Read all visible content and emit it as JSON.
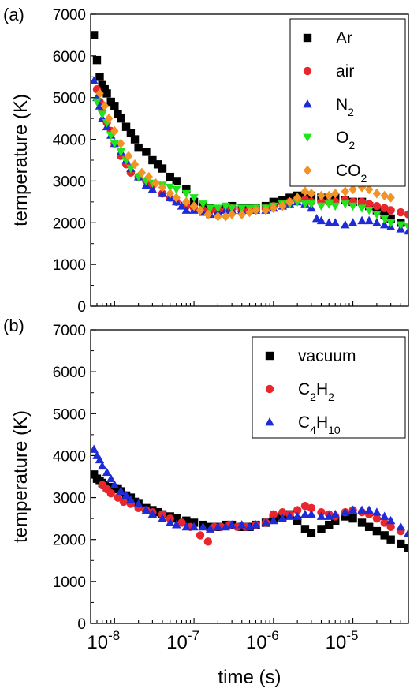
{
  "chart_data": [
    {
      "type": "scatter",
      "panel_label": "(a)",
      "ylabel": "temperature (K)",
      "xlabel": "",
      "x_scale": "log",
      "xlim": [
        5e-09,
        5e-05
      ],
      "ylim": [
        0,
        7000
      ],
      "y_ticks": [
        "0",
        "1000",
        "2000",
        "3000",
        "4000",
        "5000",
        "6000",
        "7000"
      ],
      "legend_position": "top-right",
      "series": [
        {
          "name": "Ar",
          "name_base": "Ar",
          "name_sub": "",
          "marker": "square",
          "color": "#000000",
          "x": [
            5.5e-09,
            6e-09,
            6.5e-09,
            7e-09,
            7.5e-09,
            8e-09,
            9e-09,
            1e-08,
            1.1e-08,
            1.2e-08,
            1.4e-08,
            1.6e-08,
            1.8e-08,
            2e-08,
            2.5e-08,
            3e-08,
            3.5e-08,
            4e-08,
            5e-08,
            6e-08,
            8e-08,
            1e-07,
            1.3e-07,
            1.6e-07,
            2e-07,
            2.5e-07,
            3e-07,
            4e-07,
            5e-07,
            6e-07,
            8e-07,
            1e-06,
            1.3e-06,
            1.6e-06,
            2e-06,
            2.5e-06,
            3e-06,
            4e-06,
            5e-06,
            6e-06,
            8e-06,
            1e-05,
            1.3e-05,
            1.6e-05,
            2e-05,
            2.5e-05,
            3e-05,
            4e-05
          ],
          "y": [
            6500,
            5900,
            5500,
            5300,
            5200,
            5100,
            4900,
            4800,
            4600,
            4500,
            4300,
            4150,
            4000,
            3800,
            3700,
            3500,
            3400,
            3300,
            3100,
            3000,
            2800,
            2500,
            2400,
            2350,
            2300,
            2350,
            2400,
            2350,
            2350,
            2350,
            2400,
            2500,
            2550,
            2600,
            2650,
            2600,
            2650,
            2600,
            2550,
            2600,
            2550,
            2500,
            2500,
            2400,
            2300,
            2200,
            2100,
            2000
          ]
        },
        {
          "name": "air",
          "name_base": "air",
          "name_sub": "",
          "marker": "circle",
          "color": "#e8262c",
          "x": [
            6e-09,
            6.5e-09,
            7e-09,
            8e-09,
            9e-09,
            1e-08,
            1.2e-08,
            1.4e-08,
            1.6e-08,
            2e-08,
            2.5e-08,
            3e-08,
            4e-08,
            5e-08,
            6e-08,
            8e-08,
            1e-07,
            1.3e-07,
            1.6e-07,
            2e-07,
            2.5e-07,
            3e-07,
            4e-07,
            5e-07,
            6e-07,
            8e-07,
            1e-06,
            1.3e-06,
            1.6e-06,
            2e-06,
            2.5e-06,
            3e-06,
            4e-06,
            5e-06,
            6e-06,
            8e-06,
            1e-05,
            1.3e-05,
            1.6e-05,
            2e-05,
            2.5e-05,
            3e-05,
            4e-05,
            5e-05
          ],
          "y": [
            5200,
            4900,
            4700,
            4400,
            4200,
            3900,
            3600,
            3400,
            3200,
            3100,
            3000,
            2900,
            2700,
            2600,
            2500,
            2400,
            2350,
            2300,
            2300,
            2300,
            2300,
            2350,
            2300,
            2300,
            2350,
            2350,
            2400,
            2450,
            2500,
            2550,
            2550,
            2500,
            2500,
            2500,
            2500,
            2550,
            2500,
            2500,
            2450,
            2400,
            2350,
            2300,
            2250,
            2200
          ]
        },
        {
          "name": "N2",
          "name_base": "N",
          "name_sub": "2",
          "marker": "triangle-up",
          "color": "#1f2bd6",
          "x": [
            5.5e-09,
            6e-09,
            6.5e-09,
            7e-09,
            8e-09,
            9e-09,
            1e-08,
            1.2e-08,
            1.4e-08,
            1.6e-08,
            2e-08,
            2.5e-08,
            3e-08,
            4e-08,
            5e-08,
            6e-08,
            7e-08,
            8e-08,
            1e-07,
            1.3e-07,
            1.6e-07,
            2e-07,
            2.5e-07,
            3e-07,
            4e-07,
            5e-07,
            6e-07,
            8e-07,
            1e-06,
            1.3e-06,
            1.6e-06,
            2e-06,
            2.5e-06,
            3e-06,
            3.5e-06,
            4e-06,
            5e-06,
            6e-06,
            8e-06,
            1e-05,
            1.3e-05,
            1.6e-05,
            2e-05,
            2.5e-05,
            3e-05,
            4e-05,
            5e-05
          ],
          "y": [
            5400,
            5000,
            4800,
            4500,
            4300,
            4100,
            3900,
            3700,
            3500,
            3300,
            3100,
            2900,
            2800,
            2700,
            2600,
            2500,
            2400,
            2300,
            2300,
            2250,
            2200,
            2250,
            2300,
            2300,
            2300,
            2300,
            2300,
            2300,
            2350,
            2400,
            2450,
            2500,
            2450,
            2350,
            2100,
            2050,
            2000,
            2000,
            1950,
            2000,
            2050,
            2050,
            2000,
            1950,
            1900,
            1850,
            1800
          ]
        },
        {
          "name": "O2",
          "name_base": "O",
          "name_sub": "2",
          "marker": "triangle-down",
          "color": "#1ee61a",
          "x": [
            6e-09,
            7e-09,
            8e-09,
            9e-09,
            1e-08,
            1.2e-08,
            1.4e-08,
            1.6e-08,
            2e-08,
            2.5e-08,
            3e-08,
            4e-08,
            5e-08,
            6e-08,
            8e-08,
            1e-07,
            1.3e-07,
            1.6e-07,
            2e-07,
            2.5e-07,
            3e-07,
            4e-07,
            5e-07,
            6e-07,
            8e-07,
            1e-06,
            1.3e-06,
            1.6e-06,
            2e-06,
            2.5e-06,
            3e-06,
            4e-06,
            5e-06,
            6e-06,
            8e-06,
            1e-05,
            1.3e-05,
            1.6e-05,
            2e-05,
            2.5e-05,
            3e-05,
            4e-05,
            5e-05
          ],
          "y": [
            4900,
            4600,
            4400,
            4100,
            3900,
            3700,
            3500,
            3300,
            3100,
            3000,
            2950,
            2900,
            2850,
            2800,
            2700,
            2600,
            2450,
            2350,
            2350,
            2400,
            2350,
            2350,
            2350,
            2350,
            2350,
            2400,
            2450,
            2450,
            2500,
            2450,
            2450,
            2400,
            2450,
            2400,
            2450,
            2400,
            2350,
            2300,
            2200,
            2100,
            2000,
            1950,
            1900
          ]
        },
        {
          "name": "CO2",
          "name_base": "CO",
          "name_sub": "2",
          "marker": "diamond",
          "color": "#f29325",
          "x": [
            6.5e-09,
            7.5e-09,
            8.5e-09,
            1e-08,
            1.2e-08,
            1.5e-08,
            1.8e-08,
            2.2e-08,
            2.7e-08,
            3.3e-08,
            4e-08,
            5e-08,
            6e-08,
            8e-08,
            1e-07,
            1.2e-07,
            1.5e-07,
            2e-07,
            2.5e-07,
            3e-07,
            4e-07,
            5e-07,
            6e-07,
            8e-07,
            1e-06,
            1.3e-06,
            1.6e-06,
            2e-06,
            2.5e-06,
            3e-06,
            4e-06,
            5e-06,
            6e-06,
            8e-06,
            1e-05,
            1.3e-05,
            1.6e-05,
            2e-05,
            2.5e-05,
            3e-05
          ],
          "y": [
            5100,
            4800,
            4500,
            4200,
            3900,
            3600,
            3400,
            3200,
            3100,
            2950,
            2850,
            2700,
            2600,
            2500,
            2400,
            2300,
            2200,
            2150,
            2150,
            2200,
            2200,
            2250,
            2300,
            2300,
            2350,
            2400,
            2500,
            2600,
            2750,
            2700,
            2650,
            2650,
            2700,
            2750,
            2800,
            2850,
            2800,
            2700,
            2650,
            2600
          ]
        }
      ]
    },
    {
      "type": "scatter",
      "panel_label": "(b)",
      "ylabel": "temperature (K)",
      "xlabel": "time (s)",
      "x_scale": "log",
      "xlim": [
        5e-09,
        5e-05
      ],
      "ylim": [
        0,
        7000
      ],
      "y_ticks": [
        "0",
        "1000",
        "2000",
        "3000",
        "4000",
        "5000",
        "6000",
        "7000"
      ],
      "x_ticks": [
        {
          "value": 1e-08,
          "base": "10",
          "exp": "-8"
        },
        {
          "value": 1e-07,
          "base": "10",
          "exp": "-7"
        },
        {
          "value": 1e-06,
          "base": "10",
          "exp": "-6"
        },
        {
          "value": 1e-05,
          "base": "10",
          "exp": "-5"
        }
      ],
      "legend_position": "top-right",
      "series": [
        {
          "name": "vacuum",
          "name_base": "vacuum",
          "name_sub": "",
          "marker": "square",
          "color": "#000000",
          "x": [
            5.5e-09,
            6e-09,
            6.5e-09,
            7e-09,
            7.5e-09,
            8e-09,
            9e-09,
            1e-08,
            1.1e-08,
            1.2e-08,
            1.4e-08,
            1.6e-08,
            1.8e-08,
            2e-08,
            2.5e-08,
            3e-08,
            3.5e-08,
            4e-08,
            5e-08,
            6e-08,
            8e-08,
            1e-07,
            1.3e-07,
            1.6e-07,
            2e-07,
            2.5e-07,
            3e-07,
            4e-07,
            5e-07,
            6e-07,
            8e-07,
            1e-06,
            1.3e-06,
            1.6e-06,
            2e-06,
            2.5e-06,
            3e-06,
            4e-06,
            5e-06,
            6e-06,
            8e-06,
            1e-05,
            1.3e-05,
            1.6e-05,
            2e-05,
            2.5e-05,
            3e-05,
            4e-05,
            5e-05
          ],
          "y": [
            3550,
            3450,
            3400,
            3350,
            3300,
            3250,
            3250,
            3200,
            3200,
            3150,
            3050,
            3000,
            2900,
            2850,
            2750,
            2700,
            2650,
            2600,
            2550,
            2500,
            2450,
            2400,
            2350,
            2300,
            2300,
            2350,
            2350,
            2300,
            2300,
            2350,
            2400,
            2500,
            2550,
            2600,
            2450,
            2250,
            2150,
            2250,
            2350,
            2450,
            2550,
            2500,
            2400,
            2300,
            2200,
            2100,
            2000,
            1900,
            1800
          ]
        },
        {
          "name": "C2H2",
          "name_base": "C",
          "name_sub": "2",
          "name_base2": "H",
          "name_sub2": "2",
          "marker": "circle",
          "color": "#e8262c",
          "x": [
            7e-09,
            8e-09,
            9e-09,
            1.1e-08,
            1.3e-08,
            1.6e-08,
            2e-08,
            2.5e-08,
            3e-08,
            4e-08,
            5e-08,
            7e-08,
            9e-08,
            1.2e-07,
            1.5e-07,
            1.8e-07,
            2.2e-07,
            2.8e-07,
            3.5e-07,
            4.5e-07,
            6e-07,
            8e-07,
            1e-06,
            1.3e-06,
            1.6e-06,
            2e-06,
            2.5e-06,
            3e-06,
            4e-06,
            5e-06,
            6e-06,
            8e-06,
            1e-05,
            1.3e-05,
            1.6e-05,
            2e-05,
            2.5e-05,
            3e-05,
            4e-05
          ],
          "y": [
            3300,
            3200,
            3100,
            3000,
            2900,
            2850,
            2750,
            2700,
            2650,
            2600,
            2500,
            2400,
            2300,
            2100,
            1950,
            2300,
            2300,
            2350,
            2300,
            2300,
            2350,
            2400,
            2600,
            2650,
            2600,
            2700,
            2800,
            2750,
            2650,
            2600,
            2550,
            2650,
            2700,
            2650,
            2600,
            2500,
            2400,
            2300,
            2200
          ]
        },
        {
          "name": "C4H10",
          "name_base": "C",
          "name_sub": "4",
          "name_base2": "H",
          "name_sub2": "10",
          "marker": "triangle-up",
          "color": "#1f2bd6",
          "x": [
            5.5e-09,
            6e-09,
            6.5e-09,
            7e-09,
            8e-09,
            9e-09,
            1e-08,
            1.2e-08,
            1.4e-08,
            1.6e-08,
            2e-08,
            2.5e-08,
            3e-08,
            4e-08,
            5e-08,
            6e-08,
            8e-08,
            1e-07,
            1.3e-07,
            1.6e-07,
            2e-07,
            2.5e-07,
            3e-07,
            4e-07,
            5e-07,
            6e-07,
            8e-07,
            1e-06,
            1.3e-06,
            1.6e-06,
            2e-06,
            2.5e-06,
            3e-06,
            4e-06,
            5e-06,
            6e-06,
            8e-06,
            1e-05,
            1.3e-05,
            1.6e-05,
            2e-05,
            2.5e-05,
            3e-05,
            4e-05,
            5e-05
          ],
          "y": [
            4150,
            4000,
            3900,
            3750,
            3600,
            3450,
            3300,
            3150,
            3050,
            2950,
            2850,
            2700,
            2600,
            2500,
            2400,
            2350,
            2300,
            2300,
            2300,
            2250,
            2300,
            2300,
            2350,
            2350,
            2300,
            2350,
            2400,
            2450,
            2500,
            2550,
            2550,
            2600,
            2600,
            2550,
            2550,
            2600,
            2650,
            2700,
            2700,
            2700,
            2650,
            2550,
            2450,
            2300,
            2150
          ]
        }
      ]
    }
  ]
}
